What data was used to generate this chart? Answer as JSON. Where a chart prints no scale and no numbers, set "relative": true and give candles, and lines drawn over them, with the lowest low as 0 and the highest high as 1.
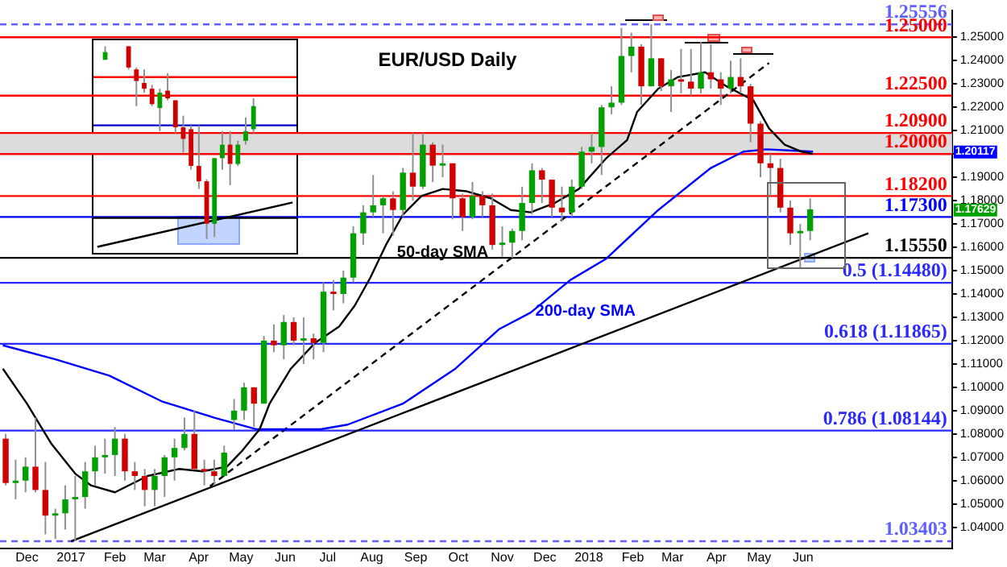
{
  "chart_data": [
    {
      "type": "candlestick",
      "title": "EUR/USD Daily",
      "x": [
        "2016-11-16",
        "2016-11-23",
        "2016-11-30",
        "2016-12-07",
        "2016-12-14",
        "2016-12-21",
        "2016-12-28",
        "2017-01-04",
        "2017-01-11",
        "2017-01-18",
        "2017-01-25",
        "2017-02-01",
        "2017-02-08",
        "2017-02-15",
        "2017-02-22",
        "2017-03-01",
        "2017-03-08",
        "2017-03-15",
        "2017-03-22",
        "2017-03-29",
        "2017-04-05",
        "2017-04-12",
        "2017-04-19",
        "2017-04-26",
        "2017-05-03",
        "2017-05-10",
        "2017-05-17",
        "2017-05-24",
        "2017-05-31",
        "2017-06-07",
        "2017-06-14",
        "2017-06-21",
        "2017-06-28",
        "2017-07-05",
        "2017-07-12",
        "2017-07-19",
        "2017-07-26",
        "2017-08-02",
        "2017-08-09",
        "2017-08-16",
        "2017-08-23",
        "2017-08-30",
        "2017-09-06",
        "2017-09-13",
        "2017-09-20",
        "2017-09-27",
        "2017-10-04",
        "2017-10-11",
        "2017-10-18",
        "2017-10-25",
        "2017-11-01",
        "2017-11-08",
        "2017-11-15",
        "2017-11-22",
        "2017-11-29",
        "2017-12-06",
        "2017-12-13",
        "2017-12-20",
        "2017-12-27",
        "2018-01-03",
        "2018-01-10",
        "2018-01-17",
        "2018-01-24",
        "2018-01-31",
        "2018-02-07",
        "2018-02-14",
        "2018-02-21",
        "2018-02-28",
        "2018-03-07",
        "2018-03-14",
        "2018-03-21",
        "2018-03-28",
        "2018-04-04",
        "2018-04-11",
        "2018-04-18",
        "2018-04-25",
        "2018-05-02",
        "2018-05-09",
        "2018-05-16",
        "2018-05-23",
        "2018-05-30",
        "2018-06-06"
      ],
      "ohlc": [
        [
          1.078,
          1.08,
          1.058,
          1.059
        ],
        [
          1.059,
          1.069,
          1.052,
          1.06
        ],
        [
          1.06,
          1.07,
          1.055,
          1.066
        ],
        [
          1.066,
          1.087,
          1.055,
          1.056
        ],
        [
          1.056,
          1.068,
          1.037,
          1.045
        ],
        [
          1.045,
          1.048,
          1.035,
          1.046
        ],
        [
          1.046,
          1.058,
          1.039,
          1.052
        ],
        [
          1.052,
          1.062,
          1.034,
          1.053
        ],
        [
          1.053,
          1.068,
          1.048,
          1.064
        ],
        [
          1.064,
          1.075,
          1.058,
          1.07
        ],
        [
          1.07,
          1.078,
          1.063,
          1.071
        ],
        [
          1.071,
          1.083,
          1.062,
          1.078
        ],
        [
          1.078,
          1.08,
          1.06,
          1.064
        ],
        [
          1.064,
          1.068,
          1.056,
          1.062
        ],
        [
          1.062,
          1.065,
          1.049,
          1.056
        ],
        [
          1.056,
          1.065,
          1.049,
          1.062
        ],
        [
          1.062,
          1.071,
          1.053,
          1.07
        ],
        [
          1.07,
          1.078,
          1.06,
          1.074
        ],
        [
          1.074,
          1.087,
          1.073,
          1.08
        ],
        [
          1.08,
          1.09,
          1.065,
          1.065
        ],
        [
          1.065,
          1.069,
          1.058,
          1.064
        ],
        [
          1.064,
          1.069,
          1.058,
          1.062
        ],
        [
          1.062,
          1.075,
          1.062,
          1.072
        ],
        [
          1.086,
          1.095,
          1.082,
          1.09
        ],
        [
          1.09,
          1.102,
          1.086,
          1.1
        ],
        [
          1.1,
          1.1,
          1.083,
          1.093
        ],
        [
          1.093,
          1.122,
          1.093,
          1.12
        ],
        [
          1.12,
          1.127,
          1.115,
          1.118
        ],
        [
          1.118,
          1.131,
          1.112,
          1.128
        ],
        [
          1.128,
          1.13,
          1.118,
          1.12
        ],
        [
          1.12,
          1.13,
          1.11,
          1.121
        ],
        [
          1.121,
          1.123,
          1.112,
          1.119
        ],
        [
          1.119,
          1.145,
          1.115,
          1.141
        ],
        [
          1.141,
          1.146,
          1.133,
          1.14
        ],
        [
          1.14,
          1.15,
          1.136,
          1.147
        ],
        [
          1.147,
          1.169,
          1.145,
          1.166
        ],
        [
          1.166,
          1.178,
          1.161,
          1.175
        ],
        [
          1.175,
          1.191,
          1.173,
          1.178
        ],
        [
          1.178,
          1.182,
          1.166,
          1.181
        ],
        [
          1.181,
          1.184,
          1.165,
          1.176
        ],
        [
          1.176,
          1.194,
          1.173,
          1.192
        ],
        [
          1.192,
          1.209,
          1.18,
          1.186
        ],
        [
          1.186,
          1.209,
          1.185,
          1.204
        ],
        [
          1.204,
          1.205,
          1.188,
          1.195
        ],
        [
          1.195,
          1.204,
          1.19,
          1.196
        ],
        [
          1.196,
          1.196,
          1.172,
          1.181
        ],
        [
          1.181,
          1.183,
          1.167,
          1.173
        ],
        [
          1.173,
          1.188,
          1.172,
          1.182
        ],
        [
          1.182,
          1.184,
          1.173,
          1.178
        ],
        [
          1.178,
          1.183,
          1.159,
          1.161
        ],
        [
          1.161,
          1.169,
          1.156,
          1.162
        ],
        [
          1.162,
          1.168,
          1.1555,
          1.167
        ],
        [
          1.167,
          1.186,
          1.163,
          1.179
        ],
        [
          1.179,
          1.196,
          1.174,
          1.193
        ],
        [
          1.193,
          1.194,
          1.179,
          1.189
        ],
        [
          1.189,
          1.189,
          1.173,
          1.177
        ],
        [
          1.177,
          1.186,
          1.171,
          1.175
        ],
        [
          1.175,
          1.189,
          1.173,
          1.186
        ],
        [
          1.186,
          1.203,
          1.185,
          1.201
        ],
        [
          1.201,
          1.209,
          1.196,
          1.203
        ],
        [
          1.203,
          1.221,
          1.191,
          1.22
        ],
        [
          1.22,
          1.229,
          1.217,
          1.222
        ],
        [
          1.222,
          1.254,
          1.221,
          1.242
        ],
        [
          1.242,
          1.252,
          1.235,
          1.246
        ],
        [
          1.246,
          1.247,
          1.221,
          1.229
        ],
        [
          1.229,
          1.2556,
          1.229,
          1.241
        ],
        [
          1.241,
          1.241,
          1.227,
          1.229
        ],
        [
          1.229,
          1.236,
          1.218,
          1.232
        ],
        [
          1.232,
          1.245,
          1.226,
          1.231
        ],
        [
          1.231,
          1.245,
          1.225,
          1.228
        ],
        [
          1.228,
          1.248,
          1.226,
          1.235
        ],
        [
          1.235,
          1.247,
          1.228,
          1.232
        ],
        [
          1.232,
          1.235,
          1.221,
          1.228
        ],
        [
          1.228,
          1.24,
          1.226,
          1.233
        ],
        [
          1.233,
          1.241,
          1.226,
          1.229
        ],
        [
          1.229,
          1.23,
          1.205,
          1.213
        ],
        [
          1.213,
          1.214,
          1.19,
          1.196
        ],
        [
          1.196,
          1.2,
          1.182,
          1.194
        ],
        [
          1.194,
          1.198,
          1.175,
          1.177
        ],
        [
          1.177,
          1.18,
          1.161,
          1.166
        ],
        [
          1.166,
          1.17,
          1.151,
          1.167
        ],
        [
          1.167,
          1.181,
          1.163,
          1.1763
        ]
      ],
      "colors": [
        "#d00000",
        "#00a000",
        "#00a000",
        "#d00000",
        "#d00000",
        "#00a000",
        "#00a000",
        "#00a000",
        "#00a000",
        "#00a000",
        "#00a000",
        "#00a000",
        "#d00000",
        "#d00000",
        "#d00000",
        "#00a000",
        "#00a000",
        "#00a000",
        "#00a000",
        "#d00000",
        "#d00000",
        "#d00000",
        "#00a000",
        "#00a000",
        "#00a000",
        "#d00000",
        "#00a000",
        "#d00000",
        "#00a000",
        "#d00000",
        "#00a000",
        "#d00000",
        "#00a000",
        "#d00000",
        "#00a000",
        "#00a000",
        "#00a000",
        "#00a000",
        "#00a000",
        "#d00000",
        "#00a000",
        "#d00000",
        "#00a000",
        "#d00000",
        "#00a000",
        "#d00000",
        "#d00000",
        "#00a000",
        "#d00000",
        "#d00000",
        "#00a000",
        "#00a000",
        "#00a000",
        "#00a000",
        "#d00000",
        "#d00000",
        "#d00000",
        "#00a000",
        "#00a000",
        "#00a000",
        "#00a000",
        "#00a000",
        "#00a000",
        "#00a000",
        "#d00000",
        "#00a000",
        "#d00000",
        "#00a000",
        "#d00000",
        "#d00000",
        "#00a000",
        "#d00000",
        "#d00000",
        "#00a000",
        "#d00000",
        "#d00000",
        "#d00000",
        "#d00000",
        "#d00000",
        "#d00000",
        "#00a000",
        "#00a000"
      ],
      "series": [
        {
          "type": "line",
          "color": "#000000",
          "x": [
            "2016-11-14",
            "2016-12-01",
            "2016-12-18",
            "2017-01-04",
            "2017-01-15",
            "2017-02-01",
            "2017-02-24",
            "2017-03-18",
            "2017-04-04",
            "2017-04-21",
            "2017-05-02",
            "2017-05-14",
            "2017-05-21",
            "2017-06-05",
            "2017-06-22",
            "2017-07-09",
            "2017-07-20",
            "2017-07-31",
            "2017-08-11",
            "2017-08-23",
            "2017-09-05",
            "2017-09-20",
            "2017-10-07",
            "2017-10-24",
            "2017-11-07",
            "2017-11-21",
            "2017-12-08",
            "2017-12-25",
            "2018-01-13",
            "2018-01-28",
            "2018-02-04",
            "2018-02-19",
            "2018-03-05",
            "2018-03-24",
            "2018-04-08",
            "2018-04-27",
            "2018-05-08",
            "2018-05-19",
            "2018-05-31",
            "2018-06-08"
          ],
          "values": [
            1.108,
            1.093,
            1.076,
            1.063,
            1.058,
            1.055,
            1.062,
            1.065,
            1.064,
            1.066,
            1.073,
            1.082,
            1.093,
            1.108,
            1.119,
            1.126,
            1.135,
            1.147,
            1.161,
            1.174,
            1.182,
            1.185,
            1.184,
            1.181,
            1.176,
            1.175,
            1.179,
            1.185,
            1.198,
            1.206,
            1.218,
            1.228,
            1.233,
            1.235,
            1.229,
            1.223,
            1.211,
            1.204,
            1.201,
            1.2
          ]
        },
        {
          "type": "line",
          "color": "#0000ff",
          "x": [
            "2016-11-14",
            "2016-12-21",
            "2017-01-28",
            "2017-03-06",
            "2017-04-12",
            "2017-05-12",
            "2017-06-26",
            "2017-07-15",
            "2017-08-23",
            "2017-09-29",
            "2017-10-30",
            "2017-11-21",
            "2017-12-19",
            "2018-01-13",
            "2018-02-19",
            "2018-03-28",
            "2018-04-20",
            "2018-05-06",
            "2018-06-08"
          ],
          "values": [
            1.118,
            1.112,
            1.105,
            1.094,
            1.087,
            1.082,
            1.082,
            1.084,
            1.093,
            1.108,
            1.125,
            1.132,
            1.146,
            1.155,
            1.176,
            1.194,
            1.201,
            1.202,
            1.201
          ]
        },
        {
          "type": "line",
          "color": "#000000",
          "x": [
            "2017-01-01",
            "2018-07-17"
          ],
          "values": [
            1.034,
            1.166
          ]
        },
        {
          "type": "line",
          "color": "#000000",
          "line_style": "dashed",
          "x": [
            "2017-04-09",
            "2018-05-08"
          ],
          "values": [
            1.0576,
            1.239
          ]
        }
      ],
      "xlim": [
        "2016-11-12",
        "2018-09-14"
      ],
      "xticks": [
        {
          "value": "2016-12-01",
          "label": "Dec"
        },
        {
          "value": "2017-01-01",
          "label": "2017"
        },
        {
          "value": "2017-02-01",
          "label": "Feb"
        },
        {
          "value": "2017-03-01",
          "label": "Mar"
        },
        {
          "value": "2017-04-01",
          "label": "Apr"
        },
        {
          "value": "2017-05-01",
          "label": "May"
        },
        {
          "value": "2017-06-01",
          "label": "Jun"
        },
        {
          "value": "2017-07-01",
          "label": "Jul"
        },
        {
          "value": "2017-08-01",
          "label": "Aug"
        },
        {
          "value": "2017-09-01",
          "label": "Sep"
        },
        {
          "value": "2017-10-01",
          "label": "Oct"
        },
        {
          "value": "2017-11-01",
          "label": "Nov"
        },
        {
          "value": "2017-12-01",
          "label": "Dec"
        },
        {
          "value": "2018-01-01",
          "label": "2018"
        },
        {
          "value": "2018-02-01",
          "label": "Feb"
        },
        {
          "value": "2018-03-01",
          "label": "Mar"
        },
        {
          "value": "2018-04-01",
          "label": "Apr"
        },
        {
          "value": "2018-05-01",
          "label": "May"
        },
        {
          "value": "2018-06-01",
          "label": "Jun"
        }
      ],
      "ylim": [
        1.031,
        1.2615
      ],
      "yticks": [
        {
          "value": 1.04,
          "label": "1.04000"
        },
        {
          "value": 1.05,
          "label": "1.05000"
        },
        {
          "value": 1.06,
          "label": "1.06000"
        },
        {
          "value": 1.07,
          "label": "1.07000"
        },
        {
          "value": 1.08,
          "label": "1.08000"
        },
        {
          "value": 1.09,
          "label": "1.09000"
        },
        {
          "value": 1.1,
          "label": "1.10000"
        },
        {
          "value": 1.11,
          "label": "1.11000"
        },
        {
          "value": 1.12,
          "label": "1.12000"
        },
        {
          "value": 1.13,
          "label": "1.13000"
        },
        {
          "value": 1.14,
          "label": "1.14000"
        },
        {
          "value": 1.15,
          "label": "1.15000"
        },
        {
          "value": 1.16,
          "label": "1.16000"
        },
        {
          "value": 1.17,
          "label": "1.17000"
        },
        {
          "value": 1.18,
          "label": "1.18000"
        },
        {
          "value": 1.19,
          "label": "1.19000"
        },
        {
          "value": 1.2,
          "label": null
        },
        {
          "value": 1.21,
          "label": "1.21000"
        },
        {
          "value": 1.22,
          "label": "1.22000"
        },
        {
          "value": 1.23,
          "label": "1.23000"
        },
        {
          "value": 1.24,
          "label": "1.24000"
        },
        {
          "value": 1.25,
          "label": "1.25000"
        }
      ],
      "bands": [
        {
          "axis": "y",
          "from": 1.2,
          "to": 1.209,
          "color": "#dcdcdc"
        }
      ],
      "ref_lines": [
        {
          "axis": "y",
          "value": 1.25556,
          "label": "1.25556",
          "color": "#6060ff",
          "line_style": "dashed"
        },
        {
          "axis": "y",
          "value": 1.25,
          "label": "1.25000",
          "color": "#ff0000"
        },
        {
          "axis": "y",
          "value": 1.225,
          "label": "1.22500",
          "color": "#ff0000"
        },
        {
          "axis": "y",
          "value": 1.209,
          "label": "1.20900",
          "color": "#ff0000"
        },
        {
          "axis": "y",
          "value": 1.2,
          "label": "1.20000",
          "color": "#ff0000"
        },
        {
          "axis": "y",
          "value": 1.182,
          "label": "1.18200",
          "color": "#ff0000"
        },
        {
          "axis": "y",
          "value": 1.173,
          "label": "1.17300",
          "color": "#0000ff"
        },
        {
          "axis": "y",
          "value": 1.1555,
          "label": "1.15550",
          "color": "#000000"
        },
        {
          "axis": "y",
          "value": 1.1448,
          "label": "0.5 (1.14480)",
          "color": "#2a2aff"
        },
        {
          "axis": "y",
          "value": 1.11865,
          "label": "0.618 (1.11865)",
          "color": "#2a2aff"
        },
        {
          "axis": "y",
          "value": 1.08144,
          "label": "0.786 (1.08144)",
          "color": "#2a2aff"
        },
        {
          "axis": "y",
          "value": 1.03403,
          "label": "1.03403",
          "color": "#6060ff",
          "line_style": "dashed"
        }
      ],
      "annotations": [
        "50-day SMA",
        "200-day SMA",
        {
          "text": "1.20117",
          "x": "2018-09-14",
          "y": 1.20117
        },
        {
          "text": "1.17629",
          "x": "2018-09-14",
          "y": 1.17629
        }
      ]
    },
    {
      "type": "candlestick",
      "relative": true,
      "tick_labels": false,
      "categories": [
        null,
        null,
        null,
        null,
        null,
        null,
        null,
        null,
        null,
        null,
        null,
        null,
        null,
        null,
        null,
        null,
        null,
        null,
        null,
        null,
        null,
        null,
        null,
        null,
        null,
        null
      ],
      "ohlc": [
        null,
        [
          0.93,
          1.0,
          0.93,
          0.97
        ],
        null,
        null,
        [
          1.0,
          1.0,
          0.88,
          0.89
        ],
        [
          0.88,
          0.89,
          0.69,
          0.82
        ],
        [
          0.81,
          0.88,
          0.76,
          0.78
        ],
        [
          0.78,
          0.8,
          0.69,
          0.7
        ],
        [
          0.68,
          0.78,
          0.56,
          0.76
        ],
        [
          0.77,
          0.86,
          0.72,
          0.73
        ],
        [
          0.72,
          0.72,
          0.55,
          0.58
        ],
        [
          0.58,
          0.64,
          0.45,
          0.52
        ],
        [
          0.57,
          0.59,
          0.36,
          0.38
        ],
        [
          0.38,
          0.59,
          0.26,
          0.3
        ],
        [
          0.3,
          0.31,
          0.0,
          0.08
        ],
        [
          0.08,
          0.42,
          0.01,
          0.42
        ],
        [
          0.42,
          0.56,
          0.36,
          0.49
        ],
        [
          0.49,
          0.56,
          0.28,
          0.39
        ],
        [
          0.39,
          0.51,
          0.38,
          0.49
        ],
        [
          0.51,
          0.63,
          0.49,
          0.56
        ],
        [
          0.57,
          0.73,
          0.55,
          0.69
        ],
        null,
        null,
        null,
        null,
        null
      ],
      "colors": [
        null,
        "#00a000",
        null,
        null,
        "#d00000",
        "#d00000",
        "#d00000",
        "#d00000",
        "#00a000",
        "#d00000",
        "#d00000",
        "#d00000",
        "#d00000",
        "#d00000",
        "#d00000",
        "#00a000",
        "#00a000",
        "#d00000",
        "#00a000",
        "#00a000",
        "#00a000",
        null,
        null,
        null,
        null,
        null
      ],
      "series": [
        {
          "type": "line",
          "color": "#000000",
          "values": [
            -0.04,
            null,
            null,
            null,
            null,
            null,
            null,
            null,
            null,
            null,
            null,
            null,
            null,
            null,
            null,
            null,
            null,
            null,
            null,
            null,
            null,
            null,
            null,
            null,
            null,
            0.19
          ]
        }
      ],
      "ref_lines": [
        {
          "axis": "y",
          "value": 0.84,
          "color": "#ff0000"
        },
        {
          "axis": "y",
          "value": 0.59,
          "color": "#0000cc"
        },
        {
          "axis": "y",
          "value": 0.11,
          "color": "#000000"
        }
      ]
    }
  ]
}
